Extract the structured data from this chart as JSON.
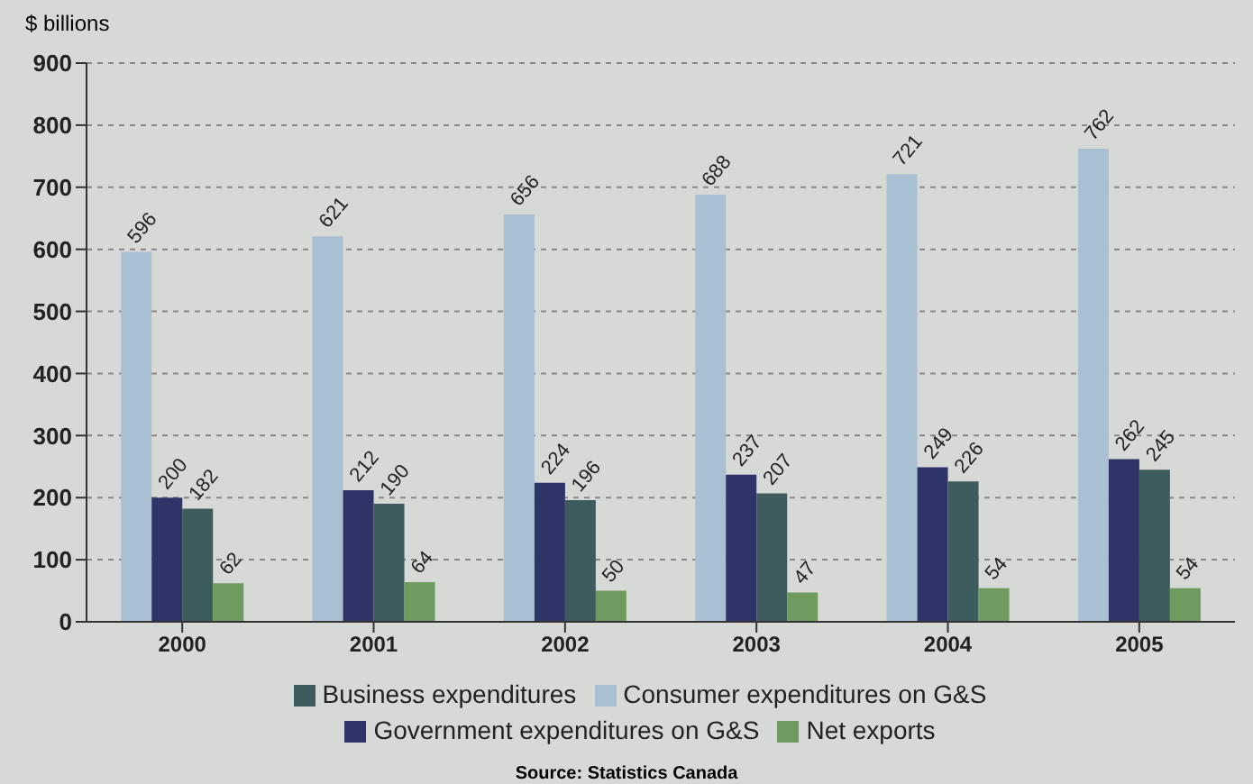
{
  "chart_data": {
    "type": "bar",
    "ylabel": "$ billions",
    "categories": [
      "2000",
      "2001",
      "2002",
      "2003",
      "2004",
      "2005"
    ],
    "series": [
      {
        "name": "Consumer expenditures on G&S",
        "color": "#a9bfd2",
        "values": [
          596,
          621,
          656,
          688,
          721,
          762
        ]
      },
      {
        "name": "Government expenditures on G&S",
        "color": "#2e3468",
        "values": [
          200,
          212,
          224,
          237,
          249,
          262
        ]
      },
      {
        "name": "Business expenditures",
        "color": "#3e5b5e",
        "values": [
          182,
          190,
          196,
          207,
          226,
          245
        ]
      },
      {
        "name": "Net exports",
        "color": "#6f9b5e",
        "values": [
          62,
          64,
          50,
          47,
          54,
          54
        ]
      }
    ],
    "ylim": [
      0,
      900
    ],
    "yticks": [
      0,
      100,
      200,
      300,
      400,
      500,
      600,
      700,
      800,
      900
    ],
    "grid": "y",
    "legend": "bottom",
    "data_labels": true,
    "annotations": [
      "Source: Statistics Canada"
    ]
  }
}
